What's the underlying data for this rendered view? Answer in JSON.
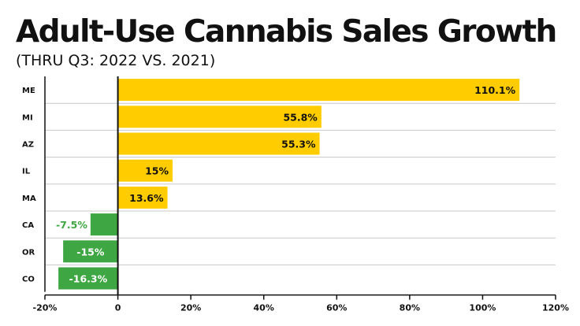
{
  "title": "Adult-Use Cannabis Sales Growth",
  "subtitle": "(THRU Q3: 2022 VS. 2021)",
  "colors": {
    "positive": "#ffcc00",
    "negative": "#3ea642",
    "negative_label": "#3ea642",
    "positive_label": "#111111",
    "grid": "#c8c8c8",
    "axis": "#111111"
  },
  "chart_data": {
    "type": "bar",
    "orientation": "horizontal",
    "title": "Adult-Use Cannabis Sales Growth",
    "subtitle": "(THRU Q3: 2022 VS. 2021)",
    "categories": [
      "ME",
      "MI",
      "AZ",
      "IL",
      "MA",
      "CA",
      "OR",
      "CO"
    ],
    "values": [
      110.1,
      55.8,
      55.3,
      15,
      13.6,
      -7.5,
      -15,
      -16.3
    ],
    "data_labels": [
      "110.1%",
      "55.8%",
      "55.3%",
      "15%",
      "13.6%",
      "-7.5%",
      "-15%",
      "-16.3%"
    ],
    "xlim": [
      -20,
      120
    ],
    "xticks": [
      -20,
      0,
      20,
      40,
      60,
      80,
      100,
      120
    ],
    "xtick_labels": [
      "-20%",
      "0",
      "20%",
      "40%",
      "60%",
      "80%",
      "100%",
      "120%"
    ],
    "xlabel": "",
    "ylabel": "",
    "grid": "horizontal row separators",
    "legend": "none"
  }
}
